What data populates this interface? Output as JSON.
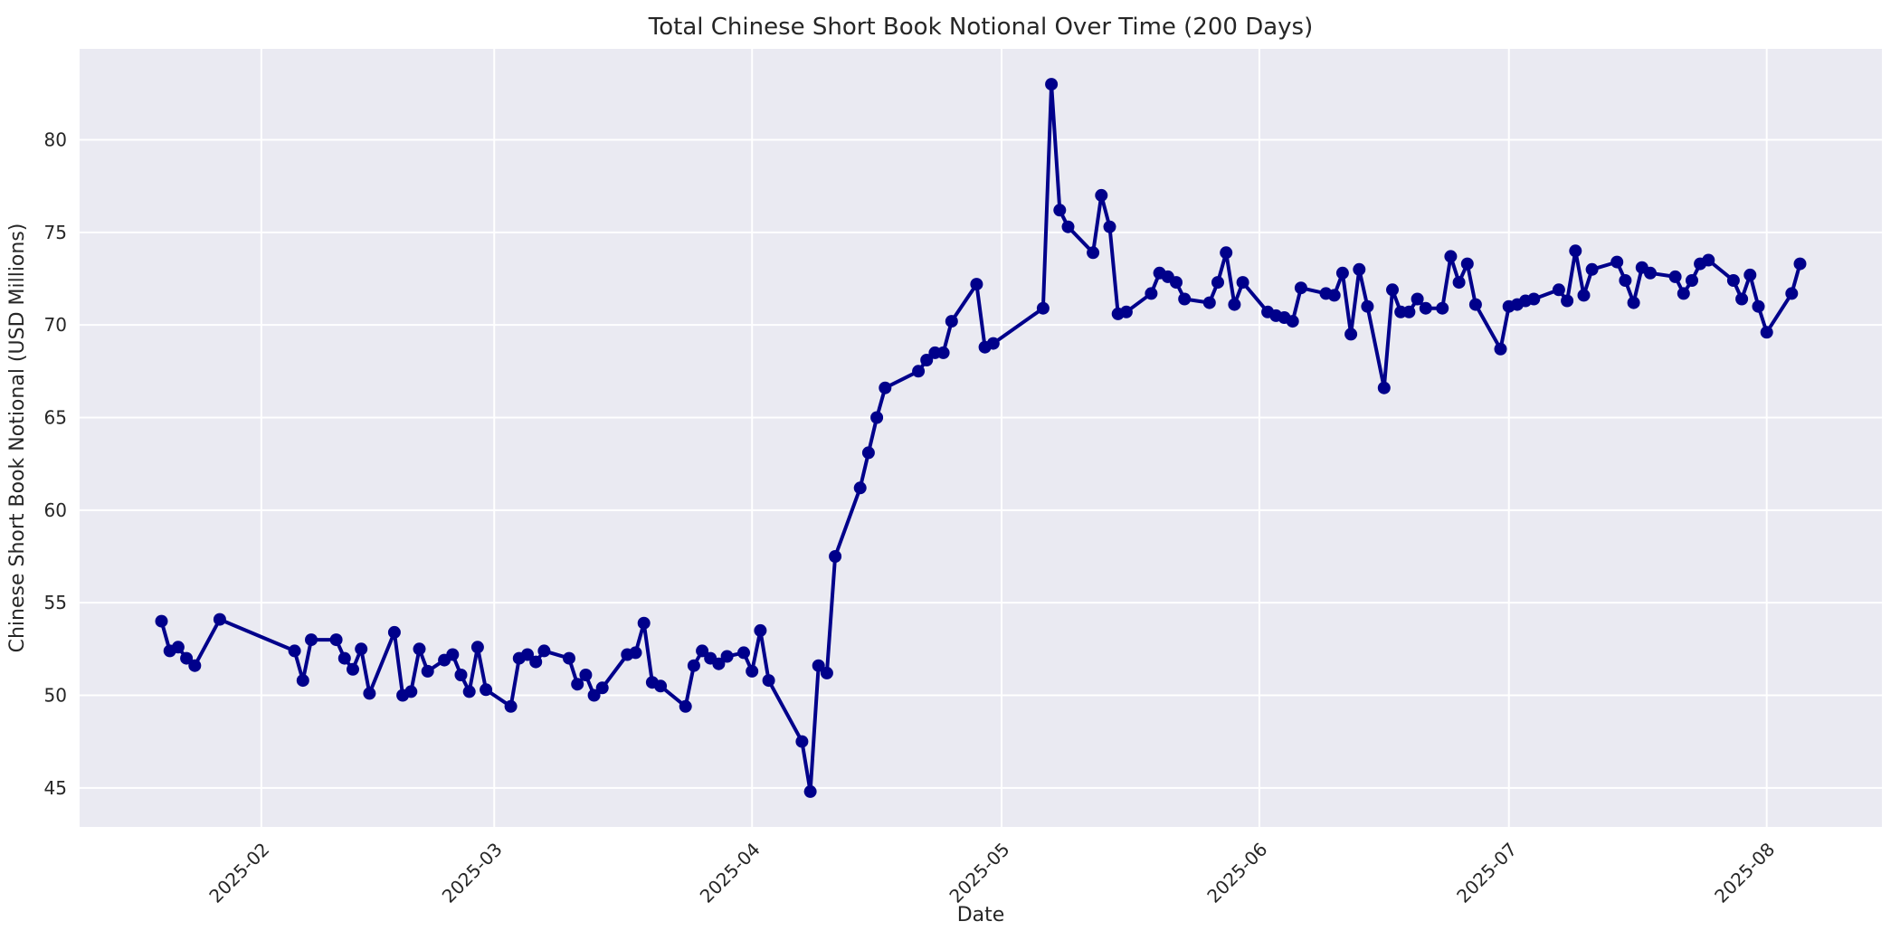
{
  "style": {
    "figure_bg": "#ffffff",
    "plot_bg": "#eaeaf2",
    "grid_color": "#ffffff",
    "line_color": "#00008b",
    "marker_color": "#00008b",
    "text_color": "#262626"
  },
  "chart_data": {
    "type": "line",
    "title": "Total Chinese Short Book Notional Over Time (200 Days)",
    "xlabel": "Date",
    "ylabel": "Chinese Short Book Notional (USD Millions)",
    "legend": "none",
    "grid": true,
    "marker": "circle",
    "x_ticks": [
      {
        "label": "2025-02",
        "date": "2025-02-01"
      },
      {
        "label": "2025-03",
        "date": "2025-03-01"
      },
      {
        "label": "2025-04",
        "date": "2025-04-01"
      },
      {
        "label": "2025-05",
        "date": "2025-05-01"
      },
      {
        "label": "2025-06",
        "date": "2025-06-01"
      },
      {
        "label": "2025-07",
        "date": "2025-07-01"
      },
      {
        "label": "2025-08",
        "date": "2025-08-01"
      }
    ],
    "y_ticks": [
      45,
      50,
      55,
      60,
      65,
      70,
      75,
      80
    ],
    "xlim_days_2025": [
      9.15,
      225.85
    ],
    "ylim": [
      42.89,
      84.91
    ],
    "series": [
      {
        "name": "Total Chinese Short Book Notional",
        "points": [
          [
            "2025-01-20",
            54.0
          ],
          [
            "2025-01-21",
            52.4
          ],
          [
            "2025-01-22",
            52.6
          ],
          [
            "2025-01-23",
            52.0
          ],
          [
            "2025-01-24",
            51.6
          ],
          [
            "2025-01-27",
            54.1
          ],
          [
            "2025-02-05",
            52.4
          ],
          [
            "2025-02-06",
            50.8
          ],
          [
            "2025-02-07",
            53.0
          ],
          [
            "2025-02-10",
            53.0
          ],
          [
            "2025-02-11",
            52.0
          ],
          [
            "2025-02-12",
            51.4
          ],
          [
            "2025-02-13",
            52.5
          ],
          [
            "2025-02-14",
            50.1
          ],
          [
            "2025-02-17",
            53.4
          ],
          [
            "2025-02-18",
            50.0
          ],
          [
            "2025-02-19",
            50.2
          ],
          [
            "2025-02-20",
            52.5
          ],
          [
            "2025-02-21",
            51.3
          ],
          [
            "2025-02-23",
            51.9
          ],
          [
            "2025-02-24",
            52.2
          ],
          [
            "2025-02-25",
            51.1
          ],
          [
            "2025-02-26",
            50.2
          ],
          [
            "2025-02-27",
            52.6
          ],
          [
            "2025-02-28",
            50.3
          ],
          [
            "2025-03-03",
            49.4
          ],
          [
            "2025-03-04",
            52.0
          ],
          [
            "2025-03-05",
            52.2
          ],
          [
            "2025-03-06",
            51.8
          ],
          [
            "2025-03-07",
            52.4
          ],
          [
            "2025-03-10",
            52.0
          ],
          [
            "2025-03-11",
            50.6
          ],
          [
            "2025-03-12",
            51.1
          ],
          [
            "2025-03-13",
            50.0
          ],
          [
            "2025-03-14",
            50.4
          ],
          [
            "2025-03-17",
            52.2
          ],
          [
            "2025-03-18",
            52.3
          ],
          [
            "2025-03-19",
            53.9
          ],
          [
            "2025-03-20",
            50.7
          ],
          [
            "2025-03-21",
            50.5
          ],
          [
            "2025-03-24",
            49.4
          ],
          [
            "2025-03-25",
            51.6
          ],
          [
            "2025-03-26",
            52.4
          ],
          [
            "2025-03-27",
            52.0
          ],
          [
            "2025-03-28",
            51.7
          ],
          [
            "2025-03-29",
            52.1
          ],
          [
            "2025-03-31",
            52.3
          ],
          [
            "2025-04-01",
            51.3
          ],
          [
            "2025-04-02",
            53.5
          ],
          [
            "2025-04-03",
            50.8
          ],
          [
            "2025-04-07",
            47.5
          ],
          [
            "2025-04-08",
            44.8
          ],
          [
            "2025-04-09",
            51.6
          ],
          [
            "2025-04-10",
            51.2
          ],
          [
            "2025-04-11",
            57.5
          ],
          [
            "2025-04-14",
            61.2
          ],
          [
            "2025-04-15",
            63.1
          ],
          [
            "2025-04-16",
            65.0
          ],
          [
            "2025-04-17",
            66.6
          ],
          [
            "2025-04-21",
            67.5
          ],
          [
            "2025-04-22",
            68.1
          ],
          [
            "2025-04-23",
            68.5
          ],
          [
            "2025-04-24",
            68.5
          ],
          [
            "2025-04-25",
            70.2
          ],
          [
            "2025-04-28",
            72.2
          ],
          [
            "2025-04-29",
            68.8
          ],
          [
            "2025-04-30",
            69.0
          ],
          [
            "2025-05-06",
            70.9
          ],
          [
            "2025-05-07",
            83.0
          ],
          [
            "2025-05-08",
            76.2
          ],
          [
            "2025-05-09",
            75.3
          ],
          [
            "2025-05-12",
            73.9
          ],
          [
            "2025-05-13",
            77.0
          ],
          [
            "2025-05-14",
            75.3
          ],
          [
            "2025-05-15",
            70.6
          ],
          [
            "2025-05-16",
            70.7
          ],
          [
            "2025-05-19",
            71.7
          ],
          [
            "2025-05-20",
            72.8
          ],
          [
            "2025-05-21",
            72.6
          ],
          [
            "2025-05-22",
            72.3
          ],
          [
            "2025-05-23",
            71.4
          ],
          [
            "2025-05-26",
            71.2
          ],
          [
            "2025-05-27",
            72.3
          ],
          [
            "2025-05-28",
            73.9
          ],
          [
            "2025-05-29",
            71.1
          ],
          [
            "2025-05-30",
            72.3
          ],
          [
            "2025-06-02",
            70.7
          ],
          [
            "2025-06-03",
            70.5
          ],
          [
            "2025-06-04",
            70.4
          ],
          [
            "2025-06-05",
            70.2
          ],
          [
            "2025-06-06",
            72.0
          ],
          [
            "2025-06-09",
            71.7
          ],
          [
            "2025-06-10",
            71.6
          ],
          [
            "2025-06-11",
            72.8
          ],
          [
            "2025-06-12",
            69.5
          ],
          [
            "2025-06-13",
            73.0
          ],
          [
            "2025-06-14",
            71.0
          ],
          [
            "2025-06-16",
            66.6
          ],
          [
            "2025-06-17",
            71.9
          ],
          [
            "2025-06-18",
            70.7
          ],
          [
            "2025-06-19",
            70.7
          ],
          [
            "2025-06-20",
            71.4
          ],
          [
            "2025-06-21",
            70.9
          ],
          [
            "2025-06-23",
            70.9
          ],
          [
            "2025-06-24",
            73.7
          ],
          [
            "2025-06-25",
            72.3
          ],
          [
            "2025-06-26",
            73.3
          ],
          [
            "2025-06-27",
            71.1
          ],
          [
            "2025-06-30",
            68.7
          ],
          [
            "2025-07-01",
            71.0
          ],
          [
            "2025-07-02",
            71.1
          ],
          [
            "2025-07-03",
            71.3
          ],
          [
            "2025-07-04",
            71.4
          ],
          [
            "2025-07-07",
            71.9
          ],
          [
            "2025-07-08",
            71.3
          ],
          [
            "2025-07-09",
            74.0
          ],
          [
            "2025-07-10",
            71.6
          ],
          [
            "2025-07-11",
            73.0
          ],
          [
            "2025-07-14",
            73.4
          ],
          [
            "2025-07-15",
            72.4
          ],
          [
            "2025-07-16",
            71.2
          ],
          [
            "2025-07-17",
            73.1
          ],
          [
            "2025-07-18",
            72.8
          ],
          [
            "2025-07-21",
            72.6
          ],
          [
            "2025-07-22",
            71.7
          ],
          [
            "2025-07-23",
            72.4
          ],
          [
            "2025-07-24",
            73.3
          ],
          [
            "2025-07-25",
            73.5
          ],
          [
            "2025-07-28",
            72.4
          ],
          [
            "2025-07-29",
            71.4
          ],
          [
            "2025-07-30",
            72.7
          ],
          [
            "2025-07-31",
            71.0
          ],
          [
            "2025-08-01",
            69.6
          ],
          [
            "2025-08-04",
            71.7
          ],
          [
            "2025-08-05",
            73.3
          ]
        ]
      }
    ]
  }
}
